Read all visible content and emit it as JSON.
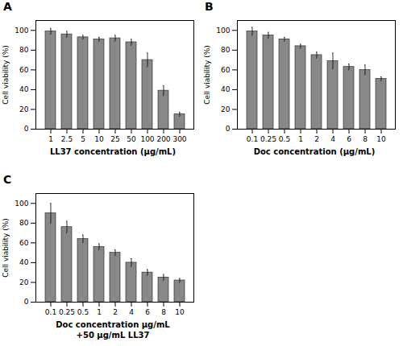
{
  "chart_data": [
    {
      "type": "bar",
      "title": "A",
      "categories": [
        "1",
        "2.5",
        "5",
        "10",
        "25",
        "50",
        "100",
        "200",
        "300"
      ],
      "values": [
        99,
        96,
        93,
        91,
        92,
        88,
        70,
        39,
        15
      ],
      "errors": [
        3,
        3,
        2,
        2,
        3,
        3,
        7,
        5,
        2
      ],
      "xlabel": "LL37 concentration (μg/mL)",
      "ylabel": "Cell viability (%)",
      "color": "#888888",
      "ylim": [
        0,
        110
      ],
      "yticks": [
        0,
        20,
        40,
        60,
        80,
        100
      ]
    },
    {
      "type": "bar",
      "title": "B",
      "categories": [
        "0.1",
        "0.25",
        "0.5",
        "1",
        "2",
        "4",
        "6",
        "8",
        "10"
      ],
      "values": [
        99,
        95,
        91,
        84,
        75,
        69,
        63,
        60,
        51
      ],
      "errors": [
        4,
        3,
        2,
        2,
        3,
        8,
        3,
        5,
        2
      ],
      "xlabel": "Doc concentration (μg/mL)",
      "ylabel": "Cell viability (%)",
      "color": "#888888",
      "ylim": [
        0,
        110
      ],
      "yticks": [
        0,
        20,
        40,
        60,
        80,
        100
      ]
    },
    {
      "type": "bar",
      "title": "C",
      "categories": [
        "0.1",
        "0.25",
        "0.5",
        "1",
        "2",
        "4",
        "6",
        "8",
        "10"
      ],
      "values": [
        90,
        76,
        64,
        56,
        50,
        40,
        30,
        25,
        22
      ],
      "errors": [
        10,
        6,
        4,
        3,
        3,
        4,
        3,
        3,
        2
      ],
      "xlabel": "Doc concentration μg/mL\n+50 μg/mL LL37",
      "ylabel": "Cell viability (%)",
      "color": "#888888",
      "ylim": [
        0,
        110
      ],
      "yticks": [
        0,
        20,
        40,
        60,
        80,
        100
      ]
    }
  ]
}
